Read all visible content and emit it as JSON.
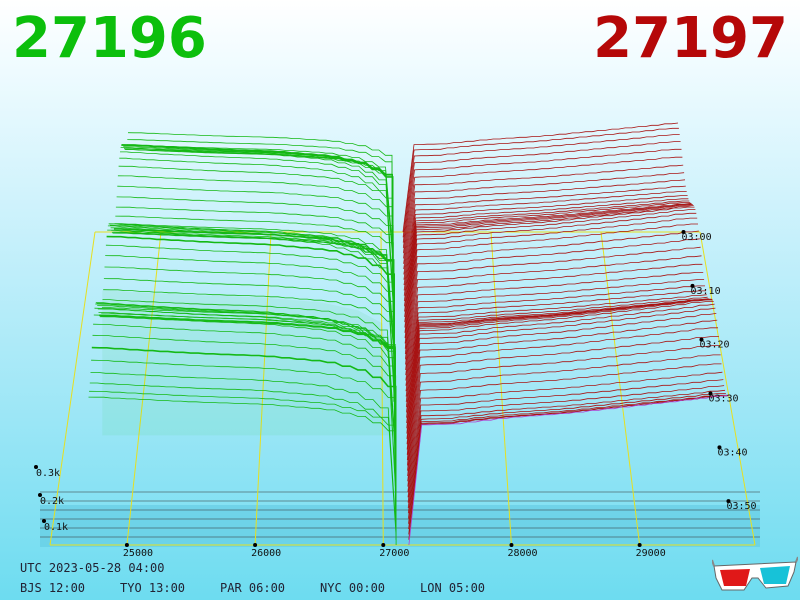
{
  "header": {
    "bid_price": "27196",
    "ask_price": "27197",
    "bid_color": "#0cbf0c",
    "ask_color": "#b50808"
  },
  "timezones": {
    "utc": "UTC 2023-05-28 04:00",
    "items": [
      "BJS 12:00",
      "TYO 13:00",
      "PAR 06:00",
      "NYC 00:00",
      "LON 05:00"
    ]
  },
  "glasses_icon": "3d-glasses-icon",
  "chart_data": {
    "type": "area",
    "title": "",
    "x_ticks": [
      25000,
      26000,
      27000,
      28000,
      29000
    ],
    "x_tick_labels": [
      "25000",
      "26000",
      "27000",
      "28000",
      "29000"
    ],
    "xlim": [
      24400,
      29900
    ],
    "depth_ticks": [
      "0.1k",
      "0.2k",
      "0.3k"
    ],
    "depth_tick_values": [
      100,
      200,
      300
    ],
    "time_ticks": [
      "03:00",
      "03:10",
      "03:20",
      "03:30",
      "03:40",
      "03:50"
    ],
    "bid_color": "#14b814",
    "ask_color": "#a81414",
    "bid_depth": [
      {
        "price": 24700,
        "depth": 1450
      },
      {
        "price": 25000,
        "depth": 1430
      },
      {
        "price": 25500,
        "depth": 1400
      },
      {
        "price": 26000,
        "depth": 1380
      },
      {
        "price": 26500,
        "depth": 1330
      },
      {
        "price": 26800,
        "depth": 1250
      },
      {
        "price": 27000,
        "depth": 1120
      },
      {
        "price": 27100,
        "depth": 0
      }
    ],
    "ask_depth": [
      {
        "price": 27200,
        "depth": 0
      },
      {
        "price": 27300,
        "depth": 1000
      },
      {
        "price": 27600,
        "depth": 1010
      },
      {
        "price": 28000,
        "depth": 1060
      },
      {
        "price": 28500,
        "depth": 1100
      },
      {
        "price": 29000,
        "depth": 1160
      },
      {
        "price": 29500,
        "depth": 1220
      },
      {
        "price": 29700,
        "depth": 1250
      }
    ],
    "grid": true,
    "legend": "none"
  }
}
